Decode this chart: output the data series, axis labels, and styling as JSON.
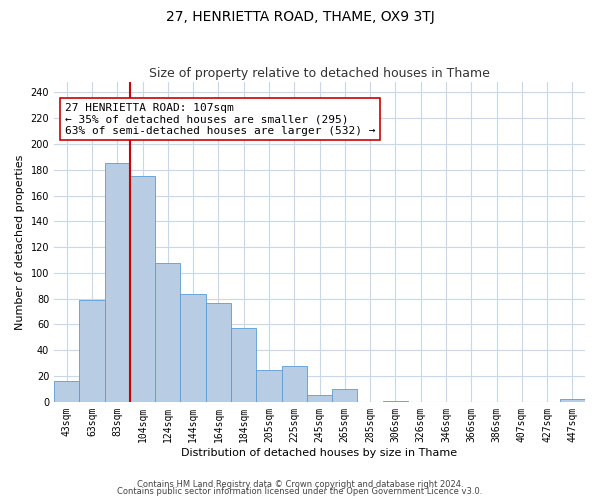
{
  "title": "27, HENRIETTA ROAD, THAME, OX9 3TJ",
  "subtitle": "Size of property relative to detached houses in Thame",
  "xlabel": "Distribution of detached houses by size in Thame",
  "ylabel": "Number of detached properties",
  "categories": [
    "43sqm",
    "63sqm",
    "83sqm",
    "104sqm",
    "124sqm",
    "144sqm",
    "164sqm",
    "184sqm",
    "205sqm",
    "225sqm",
    "245sqm",
    "265sqm",
    "285sqm",
    "306sqm",
    "326sqm",
    "346sqm",
    "366sqm",
    "386sqm",
    "407sqm",
    "427sqm",
    "447sqm"
  ],
  "values": [
    16,
    79,
    185,
    175,
    108,
    84,
    77,
    57,
    25,
    28,
    5,
    10,
    0,
    1,
    0,
    0,
    0,
    0,
    0,
    0,
    2
  ],
  "bar_color": "#b8cce4",
  "bar_edge_color": "#5b9bd5",
  "vline_color": "#cc0000",
  "annotation_line1": "27 HENRIETTA ROAD: 107sqm",
  "annotation_line2": "← 35% of detached houses are smaller (295)",
  "annotation_line3": "63% of semi-detached houses are larger (532) →",
  "annotation_box_color": "#ffffff",
  "annotation_box_edge": "#cc0000",
  "ylim": [
    0,
    248
  ],
  "yticks": [
    0,
    20,
    40,
    60,
    80,
    100,
    120,
    140,
    160,
    180,
    200,
    220,
    240
  ],
  "footer1": "Contains HM Land Registry data © Crown copyright and database right 2024.",
  "footer2": "Contains public sector information licensed under the Open Government Licence v3.0.",
  "background_color": "#ffffff",
  "grid_color": "#c8d8e8",
  "title_fontsize": 10,
  "subtitle_fontsize": 9,
  "axis_label_fontsize": 8,
  "tick_fontsize": 7,
  "annotation_fontsize": 8,
  "footer_fontsize": 6
}
